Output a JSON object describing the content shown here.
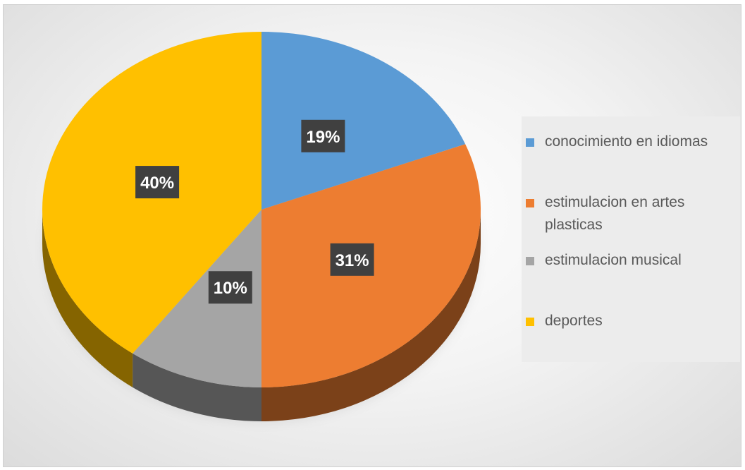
{
  "chart_data": {
    "type": "pie",
    "style": "3d",
    "categories": [
      "conocimiento en idiomas",
      "estimulacion en artes plasticas",
      "estimulacion musical",
      "deportes"
    ],
    "values": [
      19,
      31,
      10,
      40
    ],
    "value_labels": [
      "19%",
      "31%",
      "10%",
      "40%"
    ],
    "colors": [
      "#5B9BD5",
      "#ED7D31",
      "#A5A5A5",
      "#FFC000"
    ],
    "legend_position": "right"
  }
}
